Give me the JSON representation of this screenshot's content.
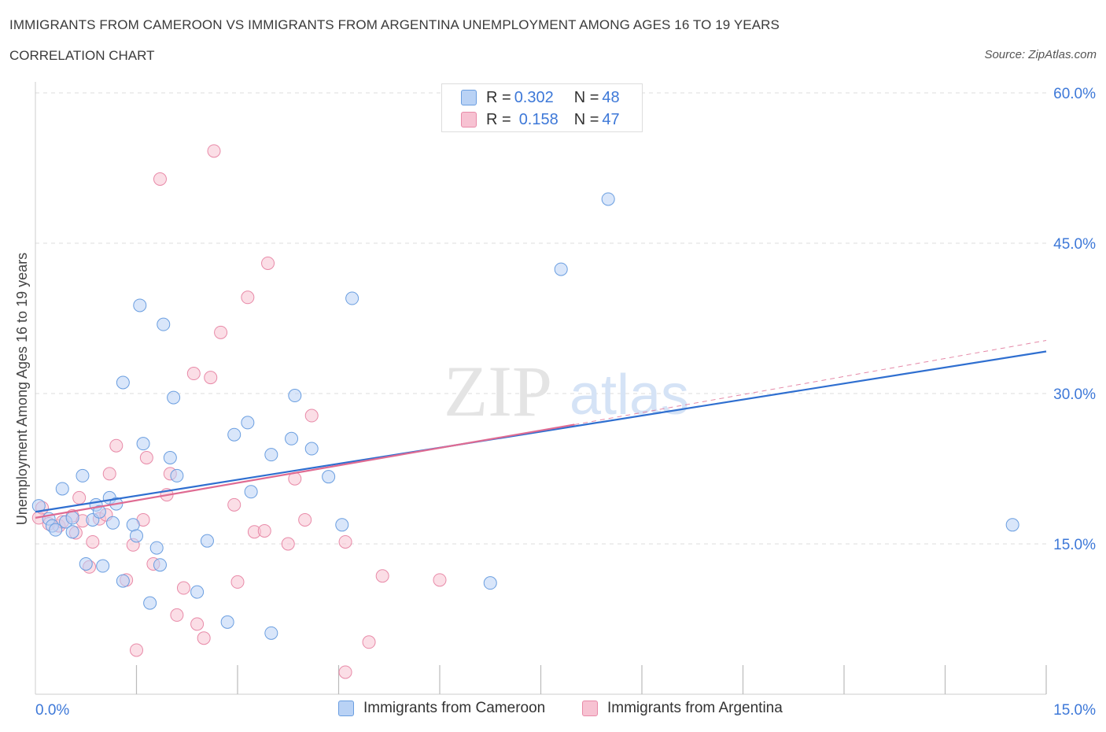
{
  "title": "IMMIGRANTS FROM CAMEROON VS IMMIGRANTS FROM ARGENTINA UNEMPLOYMENT AMONG AGES 16 TO 19 YEARS",
  "subtitle": "CORRELATION CHART",
  "source": "Source: ZipAtlas.com",
  "watermark": {
    "zip": "ZIP",
    "atlas": "atlas"
  },
  "legend": {
    "cameroon": {
      "r_label": "R = ",
      "r_value": "0.302",
      "n_label": "N = ",
      "n_value": "48"
    },
    "argentina": {
      "r_label": "R = ",
      "r_value": "0.158",
      "n_label": "N = ",
      "n_value": "47"
    }
  },
  "colors": {
    "cameroon_fill": "#b9d2f5",
    "cameroon_stroke": "#6a9ee0",
    "cameroon_line": "#2f6fd0",
    "argentina_fill": "#f7c2d2",
    "argentina_stroke": "#e88aa8",
    "argentina_line": "#df6b92",
    "axis_label": "#3d78d8",
    "grid": "#dddddd"
  },
  "chart_data": {
    "type": "scatter",
    "title": "IMMIGRANTS FROM CAMEROON VS IMMIGRANTS FROM ARGENTINA UNEMPLOYMENT AMONG AGES 16 TO 19 YEARS",
    "xlabel": "",
    "ylabel": "Unemployment Among Ages 16 to 19 years",
    "xlim": [
      0,
      15
    ],
    "ylim": [
      0,
      60
    ],
    "x_tick_labels": [
      "0.0%",
      "15.0%"
    ],
    "y_ticks": [
      15,
      30,
      45,
      60
    ],
    "y_tick_labels": [
      "15.0%",
      "30.0%",
      "45.0%",
      "60.0%"
    ],
    "series": [
      {
        "name": "Immigrants from Cameroon",
        "r": 0.302,
        "n": 48,
        "trend": {
          "x": [
            0,
            15
          ],
          "y": [
            18.2,
            34.2
          ]
        },
        "points": [
          [
            0.05,
            18.8
          ],
          [
            0.2,
            17.5
          ],
          [
            0.25,
            16.8
          ],
          [
            0.3,
            16.4
          ],
          [
            0.4,
            20.5
          ],
          [
            0.45,
            17.2
          ],
          [
            0.55,
            16.2
          ],
          [
            0.55,
            17.6
          ],
          [
            0.7,
            21.8
          ],
          [
            0.75,
            13.0
          ],
          [
            0.85,
            17.4
          ],
          [
            0.9,
            18.9
          ],
          [
            0.95,
            18.2
          ],
          [
            1.0,
            12.8
          ],
          [
            1.1,
            19.6
          ],
          [
            1.15,
            17.1
          ],
          [
            1.2,
            19.0
          ],
          [
            1.3,
            11.3
          ],
          [
            1.3,
            31.1
          ],
          [
            1.45,
            16.9
          ],
          [
            1.5,
            15.8
          ],
          [
            1.55,
            38.8
          ],
          [
            1.6,
            25.0
          ],
          [
            1.7,
            9.1
          ],
          [
            1.8,
            14.6
          ],
          [
            1.85,
            12.9
          ],
          [
            1.9,
            36.9
          ],
          [
            2.0,
            23.6
          ],
          [
            2.05,
            29.6
          ],
          [
            2.1,
            21.8
          ],
          [
            2.4,
            10.2
          ],
          [
            2.55,
            15.3
          ],
          [
            2.85,
            7.2
          ],
          [
            2.95,
            25.9
          ],
          [
            3.15,
            27.1
          ],
          [
            3.2,
            20.2
          ],
          [
            3.5,
            23.9
          ],
          [
            3.5,
            6.1
          ],
          [
            3.8,
            25.5
          ],
          [
            3.85,
            29.8
          ],
          [
            4.1,
            24.5
          ],
          [
            4.35,
            21.7
          ],
          [
            4.55,
            16.9
          ],
          [
            4.7,
            39.5
          ],
          [
            6.75,
            11.1
          ],
          [
            7.8,
            42.4
          ],
          [
            8.5,
            49.4
          ],
          [
            14.5,
            16.9
          ]
        ]
      },
      {
        "name": "Immigrants from Argentina",
        "r": 0.158,
        "n": 47,
        "trend": {
          "x": [
            0,
            8
          ],
          "y": [
            17.6,
            26.9
          ]
        },
        "trend_extension": {
          "x": [
            8,
            15
          ],
          "y": [
            26.9,
            35.3
          ]
        },
        "points": [
          [
            0.05,
            17.6
          ],
          [
            0.1,
            18.6
          ],
          [
            0.2,
            17.0
          ],
          [
            0.35,
            16.8
          ],
          [
            0.4,
            17.2
          ],
          [
            0.55,
            17.8
          ],
          [
            0.6,
            16.1
          ],
          [
            0.65,
            19.6
          ],
          [
            0.7,
            17.3
          ],
          [
            0.85,
            15.2
          ],
          [
            0.8,
            12.7
          ],
          [
            0.95,
            17.5
          ],
          [
            1.05,
            17.9
          ],
          [
            1.1,
            22.0
          ],
          [
            1.2,
            24.8
          ],
          [
            1.35,
            11.4
          ],
          [
            1.45,
            14.9
          ],
          [
            1.5,
            4.4
          ],
          [
            1.6,
            17.4
          ],
          [
            1.65,
            23.6
          ],
          [
            1.75,
            13.0
          ],
          [
            1.85,
            51.4
          ],
          [
            1.95,
            19.9
          ],
          [
            2.0,
            22.0
          ],
          [
            2.1,
            7.9
          ],
          [
            2.2,
            10.6
          ],
          [
            2.35,
            32.0
          ],
          [
            2.4,
            7.0
          ],
          [
            2.5,
            5.6
          ],
          [
            2.6,
            31.6
          ],
          [
            2.65,
            54.2
          ],
          [
            2.75,
            36.1
          ],
          [
            2.95,
            18.9
          ],
          [
            3.0,
            11.2
          ],
          [
            3.15,
            39.6
          ],
          [
            3.25,
            16.2
          ],
          [
            3.4,
            16.3
          ],
          [
            3.45,
            43.0
          ],
          [
            3.75,
            15.0
          ],
          [
            3.85,
            21.5
          ],
          [
            4.0,
            17.4
          ],
          [
            4.1,
            27.8
          ],
          [
            4.6,
            2.2
          ],
          [
            4.6,
            15.2
          ],
          [
            4.95,
            5.2
          ],
          [
            5.15,
            11.8
          ],
          [
            6.0,
            11.4
          ]
        ]
      }
    ]
  },
  "bottom_legend": {
    "cameroon": "Immigrants from Cameroon",
    "argentina": "Immigrants from Argentina"
  }
}
